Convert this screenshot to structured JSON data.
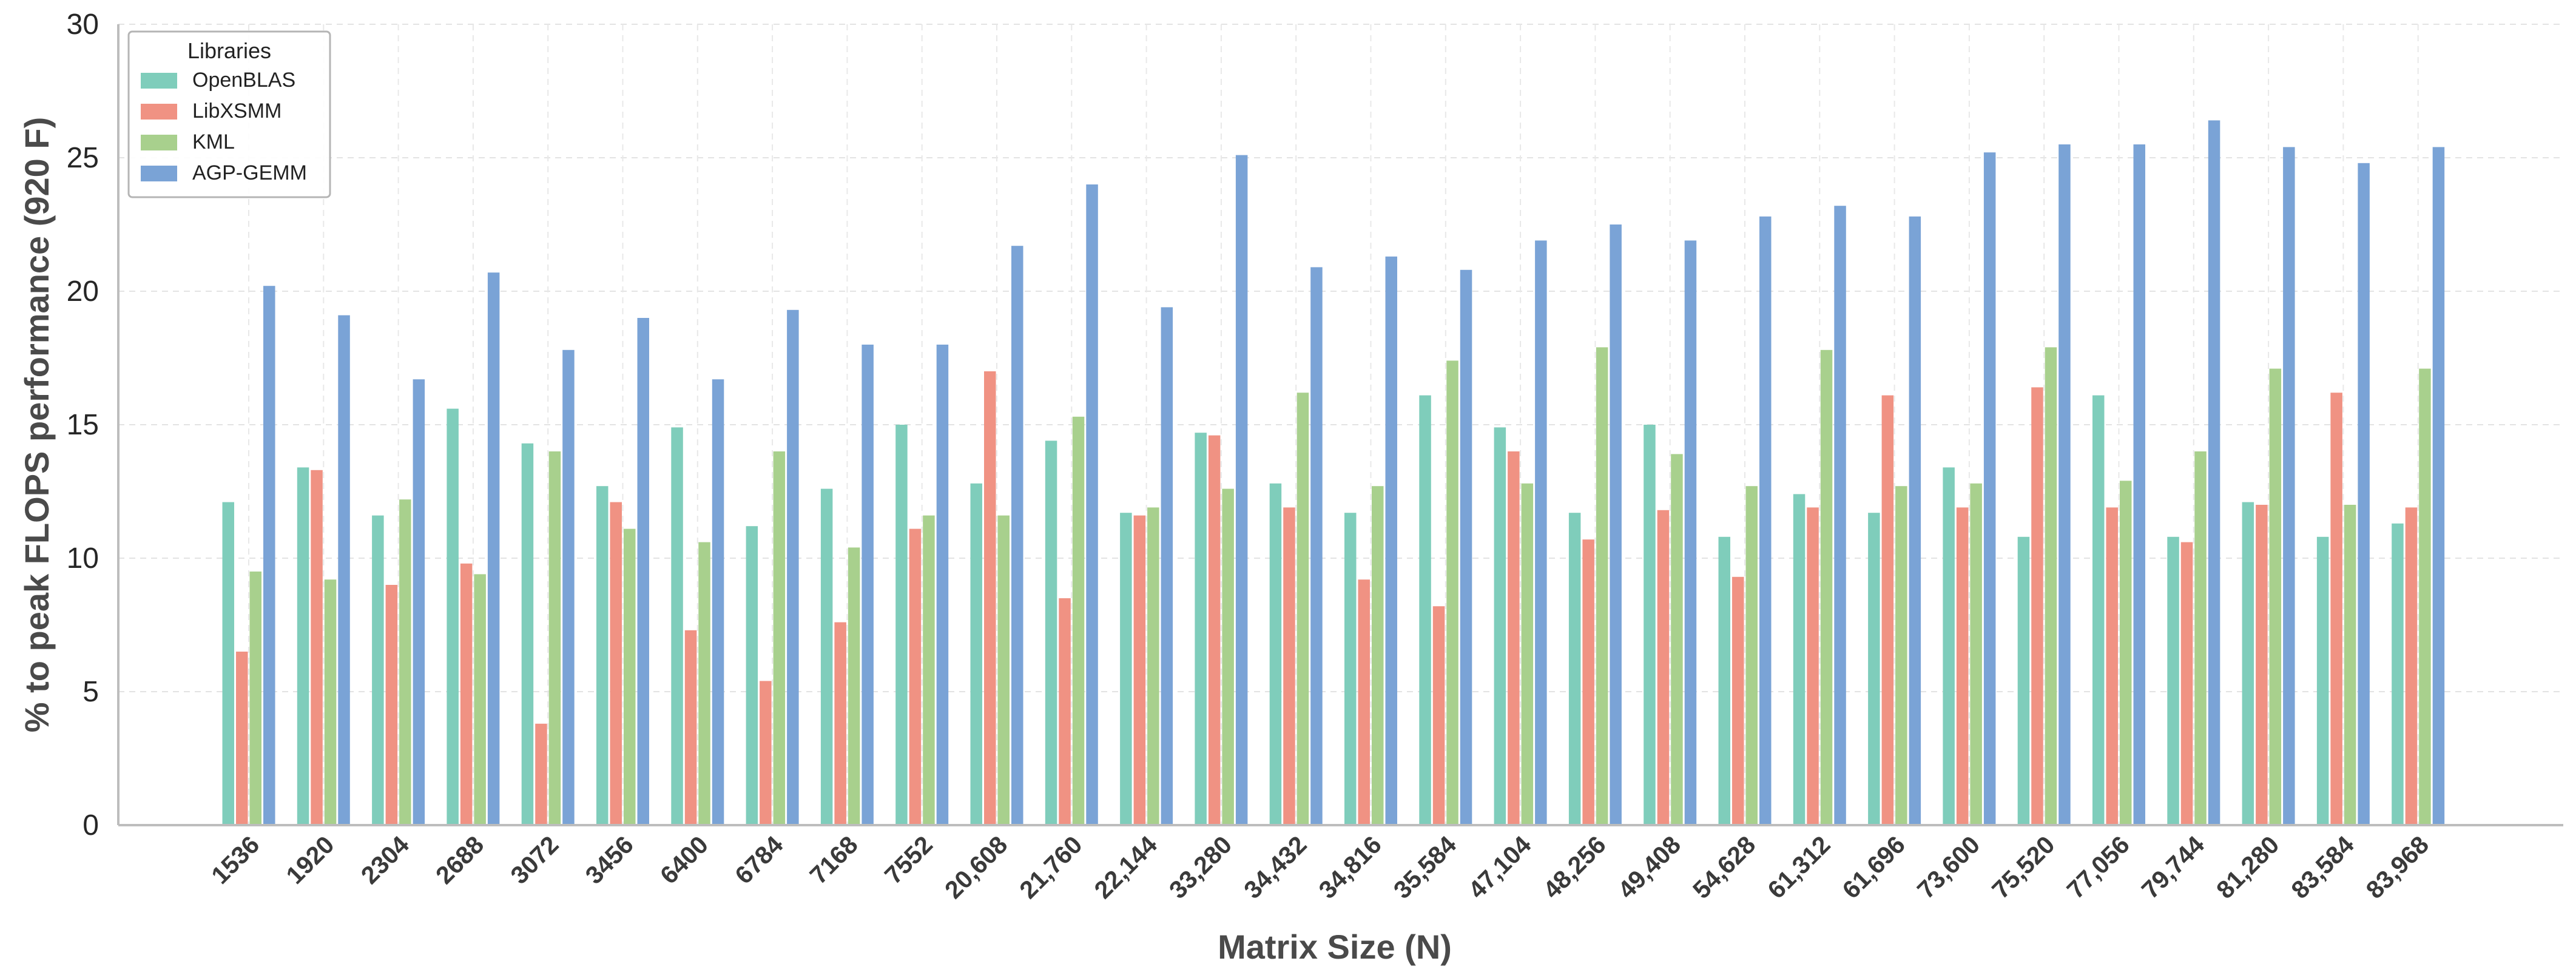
{
  "chart_data": {
    "type": "bar",
    "xlabel": "Matrix Size (N)",
    "ylabel": "% to peak FLOPS performance (920 F)",
    "ylim": [
      0,
      30
    ],
    "yticks": [
      0,
      5,
      10,
      15,
      20,
      25,
      30
    ],
    "grid": true,
    "legend": {
      "title": "Libraries",
      "position": "top-left"
    },
    "categories": [
      "1536",
      "1920",
      "2304",
      "2688",
      "3072",
      "3456",
      "6400",
      "6784",
      "7168",
      "7552",
      "20,608",
      "21,760",
      "22,144",
      "33,280",
      "34,432",
      "34,816",
      "35,584",
      "47,104",
      "48,256",
      "49,408",
      "54,628",
      "61,312",
      "61,696",
      "73,600",
      "75,520",
      "77,056",
      "79,744",
      "81,280",
      "83,584",
      "83,968"
    ],
    "series": [
      {
        "name": "OpenBLAS",
        "color": "#7fcdbb",
        "values": [
          12.1,
          13.4,
          11.6,
          15.6,
          14.3,
          12.7,
          14.9,
          11.2,
          12.6,
          15.0,
          12.8,
          14.4,
          11.7,
          14.7,
          12.8,
          11.7,
          16.1,
          14.9,
          11.7,
          15.0,
          10.8,
          12.4,
          11.7,
          13.4,
          10.8,
          16.1,
          10.8,
          12.1,
          10.8,
          11.3
        ]
      },
      {
        "name": "LibXSMM",
        "color": "#f09283",
        "values": [
          6.5,
          13.3,
          9.0,
          9.8,
          3.8,
          12.1,
          7.3,
          5.4,
          7.6,
          11.1,
          17.0,
          8.5,
          11.6,
          14.6,
          11.9,
          9.2,
          8.2,
          14.0,
          10.7,
          11.8,
          9.3,
          11.9,
          16.1,
          11.9,
          16.4,
          11.9,
          10.6,
          12.0,
          16.2,
          11.9
        ]
      },
      {
        "name": "KML",
        "color": "#a8d08d",
        "values": [
          9.5,
          9.2,
          12.2,
          9.4,
          14.0,
          11.1,
          10.6,
          14.0,
          10.4,
          11.6,
          11.6,
          15.3,
          11.9,
          12.6,
          16.2,
          12.7,
          17.4,
          12.8,
          17.9,
          13.9,
          12.7,
          17.8,
          12.7,
          12.8,
          17.9,
          12.9,
          14.0,
          17.1,
          12.0,
          17.1
        ]
      },
      {
        "name": "AGP-GEMM",
        "color": "#7aa3d6",
        "values": [
          20.2,
          19.1,
          16.7,
          20.7,
          17.8,
          19.0,
          16.7,
          19.3,
          18.0,
          18.0,
          21.7,
          24.0,
          19.4,
          25.1,
          20.9,
          21.3,
          20.8,
          21.9,
          22.5,
          21.9,
          22.8,
          23.2,
          22.8,
          25.2,
          25.5,
          25.5,
          26.4,
          25.4,
          24.8,
          25.4
        ]
      }
    ]
  }
}
